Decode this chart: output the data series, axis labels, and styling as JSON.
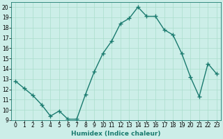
{
  "x": [
    0,
    1,
    2,
    3,
    4,
    5,
    6,
    7,
    8,
    9,
    10,
    11,
    12,
    13,
    14,
    15,
    16,
    17,
    18,
    19,
    20,
    21,
    22,
    23
  ],
  "y": [
    12.8,
    12.1,
    11.4,
    10.5,
    9.4,
    9.9,
    9.1,
    9.1,
    11.5,
    13.7,
    15.5,
    16.7,
    18.4,
    18.9,
    20.0,
    19.1,
    19.1,
    17.8,
    17.3,
    15.5,
    13.2,
    11.3,
    14.5,
    13.5
  ],
  "line_color": "#1a7a6e",
  "marker": "+",
  "bg_color": "#cceee8",
  "grid_color": "#aaddcc",
  "xlabel": "Humidex (Indice chaleur)",
  "xlim": [
    -0.5,
    23.5
  ],
  "ylim": [
    9,
    20.5
  ],
  "yticks": [
    9,
    10,
    11,
    12,
    13,
    14,
    15,
    16,
    17,
    18,
    19,
    20
  ],
  "xtick_labels": [
    "0",
    "1",
    "2",
    "3",
    "4",
    "5",
    "6",
    "7",
    "8",
    "9",
    "10",
    "11",
    "12",
    "13",
    "14",
    "15",
    "16",
    "17",
    "18",
    "19",
    "20",
    "21",
    "22",
    "23"
  ],
  "tick_fontsize": 5.5,
  "xlabel_fontsize": 6.5,
  "linewidth": 1.0,
  "markersize": 4
}
